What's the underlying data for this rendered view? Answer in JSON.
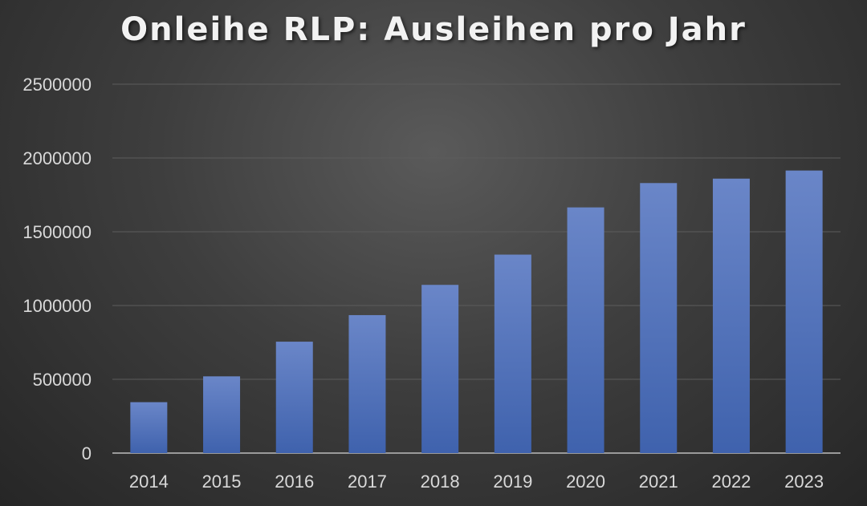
{
  "chart_data": {
    "type": "bar",
    "title": "Onleihe RLP: Ausleihen pro Jahr",
    "categories": [
      "2014",
      "2015",
      "2016",
      "2017",
      "2018",
      "2019",
      "2020",
      "2021",
      "2022",
      "2023"
    ],
    "values": [
      345000,
      520000,
      755000,
      935000,
      1140000,
      1345000,
      1665000,
      1830000,
      1860000,
      1915000
    ],
    "ylim": [
      0,
      2500000
    ],
    "yticks": [
      "0",
      "500000",
      "1000000",
      "1500000",
      "2000000",
      "2500000"
    ],
    "grid": true,
    "colors": {
      "bar_top": "#6a86c8",
      "bar_bottom": "#3f62ad",
      "grid": "#5c5c5c",
      "axis": "#9a9a9a"
    }
  }
}
